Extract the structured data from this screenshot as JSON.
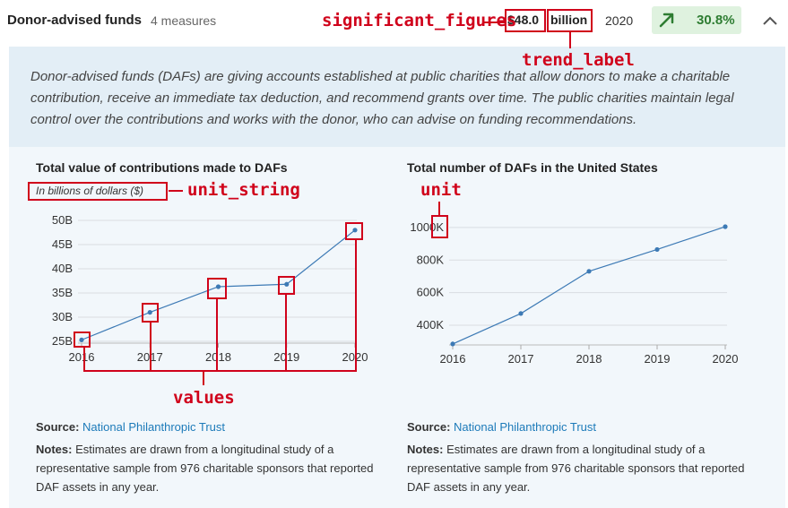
{
  "header": {
    "title": "Donor-advised funds",
    "measures": "4 measures",
    "value": "$48.0",
    "unit": "billion",
    "year": "2020",
    "trend_pct": "30.8%"
  },
  "description": "Donor-advised funds (DAFs) are giving accounts established at public charities that allow donors to make a charitable contribution, receive an immediate tax deduction, and recommend grants over time. The public charities maintain legal control over the contributions and works with the donor, who can advise on funding recommendations.",
  "annotations": {
    "significant_figures": "significant_figures",
    "trend_label": "trend_label",
    "unit_string": "unit_string",
    "unit": "unit",
    "values": "values"
  },
  "left_chart": {
    "title": "Total value of contributions made to DAFs",
    "unit_string": "In billions of dollars ($)",
    "source_label": "Source:",
    "source_link": "National Philanthropic Trust",
    "notes_label": "Notes:",
    "notes": "Estimates are drawn from a longitudinal study of a representative sample from 976 charitable sponsors that reported DAF assets in any year."
  },
  "right_chart": {
    "title": "Total number of DAFs in the United States",
    "source_label": "Source:",
    "source_link": "National Philanthropic Trust",
    "notes_label": "Notes:",
    "notes": "Estimates are drawn from a longitudinal study of a representative sample from 976 charitable sponsors that reported DAF assets in any year."
  },
  "colors": {
    "accent": "#d0021b",
    "line": "#3d7ab5",
    "trend_bg": "#dff2df",
    "trend_fg": "#2e7d32",
    "link": "#1c7ab9"
  },
  "chart_data": [
    {
      "type": "line",
      "title": "Total value of contributions made to DAFs",
      "x": [
        "2016",
        "2017",
        "2018",
        "2019",
        "2020"
      ],
      "values": [
        25.3,
        31.0,
        36.3,
        36.8,
        48.0
      ],
      "ylim": [
        25,
        50
      ],
      "yticks": [
        25,
        30,
        35,
        40,
        45,
        50
      ],
      "ytick_labels": [
        "25B",
        "30B",
        "35B",
        "40B",
        "45B",
        "50B"
      ],
      "grid": true
    },
    {
      "type": "line",
      "title": "Total number of DAFs in the United States",
      "x": [
        "2016",
        "2017",
        "2018",
        "2019",
        "2020"
      ],
      "values": [
        285,
        472,
        731,
        865,
        1005
      ],
      "ylim": [
        290,
        1005
      ],
      "yticks": [
        400,
        600,
        800,
        1000
      ],
      "ytick_labels": [
        "400K",
        "600K",
        "800K",
        "1000K"
      ],
      "grid": true
    }
  ]
}
